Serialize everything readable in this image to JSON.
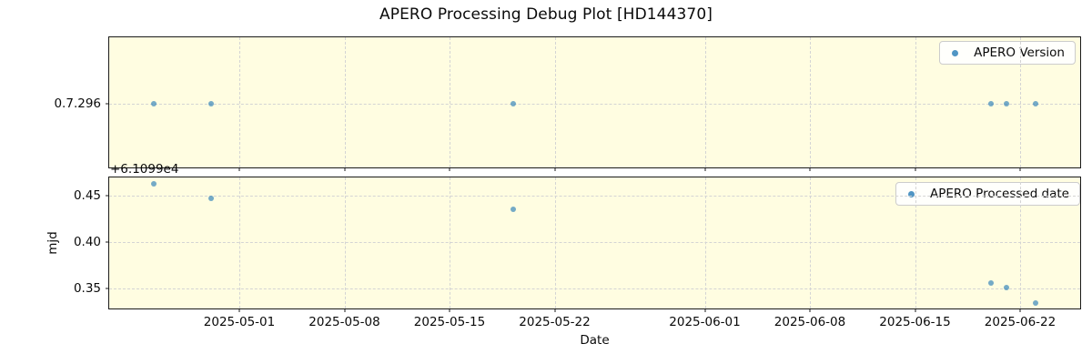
{
  "title": "APERO Processing Debug Plot [HD144370]",
  "colors": {
    "figure_background": "#ffffff",
    "axes_background": "#fffde1",
    "grid": "#d4d4d4",
    "marker": "rgba(31,119,180,0.62)",
    "marker_solid": "rgba(31,119,180,0.78)",
    "spine": "#1a1a1a"
  },
  "chart_data": [
    {
      "type": "scatter",
      "name": "APERO Version",
      "legend_position": "upper right",
      "grid": true,
      "y_axis": "categorical",
      "yticks": [
        "0.7.296"
      ],
      "x": [
        "2025-04-25T07:00",
        "2025-04-29T03:00",
        "2025-05-19T06:00",
        "2025-06-20T02:00",
        "2025-06-21T02:00",
        "2025-06-23T01:00"
      ],
      "y": [
        "0.7.296",
        "0.7.296",
        "0.7.296",
        "0.7.296",
        "0.7.296",
        "0.7.296"
      ]
    },
    {
      "type": "scatter",
      "name": "APERO Processed date",
      "legend_position": "upper right",
      "grid": true,
      "xlabel": "Date",
      "ylabel": "mjd",
      "y_offset_label": "+6.1099e4",
      "x": [
        "2025-04-25T07:00",
        "2025-04-29T03:00",
        "2025-05-19T06:00",
        "2025-06-20T02:00",
        "2025-06-21T02:00",
        "2025-06-23T01:00"
      ],
      "y": [
        61099.463,
        61099.447,
        61099.435,
        61099.356,
        61099.351,
        61099.334
      ],
      "yticks": [
        61099.45,
        61099.4,
        61099.35
      ],
      "ytick_labels": [
        "0.45",
        "0.40",
        "0.35"
      ],
      "ylim": [
        61099.328,
        61099.47
      ],
      "xticks": [
        "2025-05-01",
        "2025-05-08",
        "2025-05-15",
        "2025-05-22",
        "2025-06-01",
        "2025-06-08",
        "2025-06-15",
        "2025-06-22"
      ],
      "xlim": [
        "2025-04-22T08:00",
        "2025-06-26T00:00"
      ]
    }
  ]
}
